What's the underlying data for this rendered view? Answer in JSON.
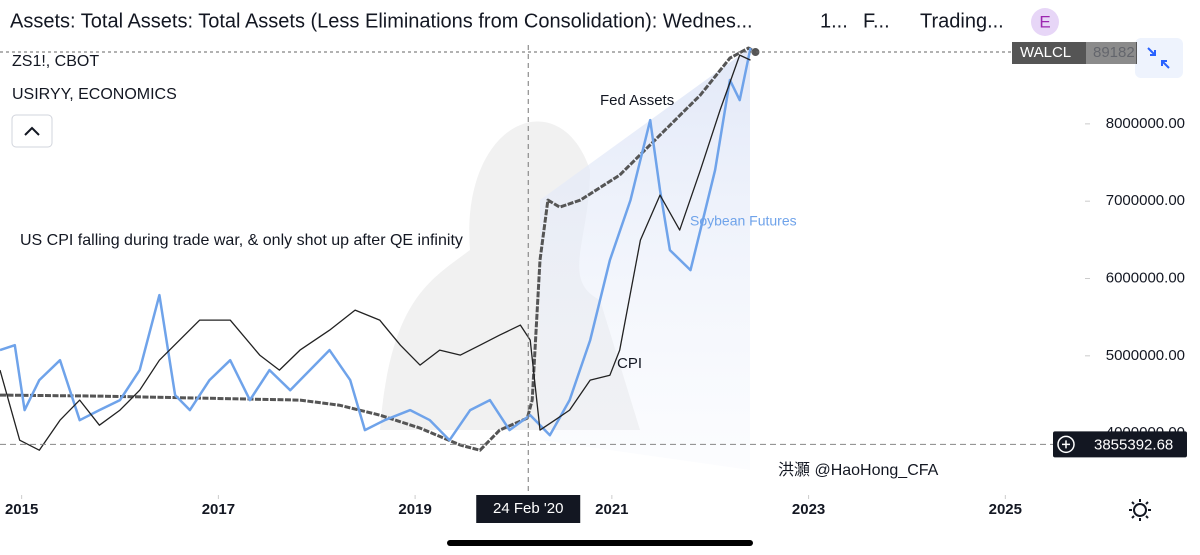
{
  "header": {
    "title": "Assets: Total Assets: Total Assets (Less Eliminations from Consolidation): Wednes...",
    "interval": "1...",
    "source": "F...",
    "provider": "Trading...",
    "badge": "E",
    "legend": [
      "ZS1!, CBOT",
      "USIRYY, ECONOMICS"
    ]
  },
  "chart_data": {
    "type": "line",
    "annotation": "US CPI falling during trade war, & only shot up after QE infinity",
    "watermark": "洪灝 @HaoHong_CFA",
    "xlim": [
      2014.78,
      2025.81
    ],
    "xticks": [
      2015,
      2017,
      2019,
      2021,
      2023,
      2025
    ],
    "ylim": [
      3200000,
      9020000
    ],
    "yticks": [
      {
        "value": 4000000,
        "label": "4000000.00"
      },
      {
        "value": 5000000,
        "label": "5000000.00"
      },
      {
        "value": 6000000,
        "label": "6000000.00"
      },
      {
        "value": 7000000,
        "label": "7000000.00"
      },
      {
        "value": 8000000,
        "label": "8000000.00"
      }
    ],
    "crosshair": {
      "x": 2020.15,
      "label": "24 Feb '20"
    },
    "price_line": 3855392.68,
    "last_tag": {
      "name": "WALCL",
      "label": "89182"
    },
    "series": [
      {
        "name": "Fed Assets",
        "color": "#555555",
        "x": [
          2014.78,
          2015.79,
          2016.81,
          2017.83,
          2018.23,
          2018.64,
          2019.05,
          2019.46,
          2019.66,
          2019.86,
          2020.14,
          2020.19,
          2020.27,
          2020.35,
          2020.47,
          2020.68,
          2021.08,
          2021.49,
          2021.9,
          2022.2,
          2022.39,
          2022.46
        ],
        "values": [
          4492000,
          4479000,
          4453000,
          4427000,
          4362000,
          4233000,
          4065000,
          3845000,
          3780000,
          4039000,
          4194000,
          4427000,
          6238000,
          7014000,
          6924000,
          7014000,
          7338000,
          7855000,
          8373000,
          8851000,
          8981000,
          8929000
        ]
      },
      {
        "name": "Soybean Futures",
        "color": "#6fa3ea",
        "x": [
          2014.78,
          2014.93,
          2015.03,
          2015.18,
          2015.39,
          2015.59,
          2015.79,
          2016.0,
          2016.2,
          2016.4,
          2016.56,
          2016.71,
          2016.91,
          2017.12,
          2017.32,
          2017.52,
          2017.73,
          2017.93,
          2018.13,
          2018.34,
          2018.49,
          2018.69,
          2018.95,
          2019.15,
          2019.35,
          2019.56,
          2019.76,
          2019.96,
          2020.17,
          2020.37,
          2020.57,
          2020.78,
          2020.98,
          2021.19,
          2021.39,
          2021.49,
          2021.59,
          2021.8,
          2021.9,
          2022.05,
          2022.2,
          2022.3,
          2022.41
        ],
        "values": [
          5074000,
          5138000,
          4298000,
          4686000,
          4944000,
          4168000,
          4298000,
          4427000,
          4815000,
          5785000,
          4492000,
          4298000,
          4686000,
          4944000,
          4427000,
          4815000,
          4556000,
          4815000,
          5074000,
          4686000,
          4039000,
          4168000,
          4298000,
          4168000,
          3909000,
          4298000,
          4427000,
          4039000,
          4233000,
          3974000,
          4427000,
          5203000,
          6238000,
          7014000,
          8049000,
          7144000,
          6367000,
          6109000,
          6626000,
          7402000,
          8567000,
          8308000,
          8981000
        ]
      },
      {
        "name": "CPI",
        "color": "#222222",
        "x": [
          2014.78,
          2014.98,
          2015.18,
          2015.39,
          2015.59,
          2015.79,
          2016.0,
          2016.2,
          2016.4,
          2016.81,
          2017.12,
          2017.42,
          2017.62,
          2017.83,
          2018.13,
          2018.39,
          2018.64,
          2018.85,
          2019.05,
          2019.25,
          2019.46,
          2019.66,
          2019.86,
          2020.07,
          2020.17,
          2020.27,
          2020.42,
          2020.57,
          2020.78,
          2020.98,
          2021.08,
          2021.29,
          2021.49,
          2021.69,
          2021.9,
          2022.1,
          2022.3,
          2022.41
        ],
        "values": [
          4815000,
          3909000,
          3780000,
          4168000,
          4427000,
          4103000,
          4298000,
          4556000,
          4944000,
          5462000,
          5462000,
          5009000,
          4815000,
          5074000,
          5332000,
          5591000,
          5462000,
          5138000,
          4880000,
          5074000,
          5009000,
          5138000,
          5268000,
          5397000,
          5203000,
          4039000,
          4168000,
          4298000,
          4686000,
          4750000,
          5074000,
          6497000,
          7079000,
          6626000,
          7402000,
          8179000,
          8890000,
          8825000
        ]
      }
    ]
  }
}
